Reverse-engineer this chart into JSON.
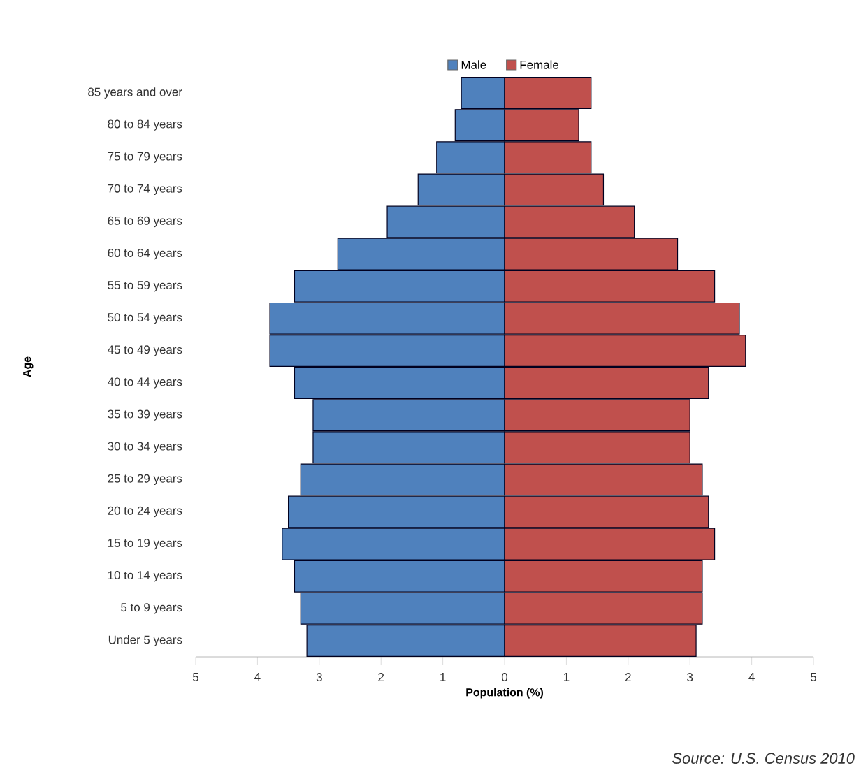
{
  "chart_data": {
    "type": "bar",
    "orientation": "horizontal",
    "stacked": true,
    "xlabel": "Population (%)",
    "ylabel": "Age",
    "categories": [
      "85 years and over",
      "80 to 84 years",
      "75 to 79 years",
      "70 to 74 years",
      "65 to 69 years",
      "60 to 64 years",
      "55 to 59 years",
      "50 to 54 years",
      "45 to 49 years",
      "40 to 44 years",
      "35 to 39 years",
      "30 to 34 years",
      "25 to 29 years",
      "20 to 24 years",
      "15 to 19 years",
      "10 to 14 years",
      "5 to 9 years",
      "Under 5 years"
    ],
    "series": [
      {
        "name": "Male",
        "color": "#4f81bd",
        "values": [
          -0.7,
          -0.8,
          -1.1,
          -1.4,
          -1.9,
          -2.7,
          -3.4,
          -3.8,
          -3.8,
          -3.4,
          -3.1,
          -3.1,
          -3.3,
          -3.5,
          -3.6,
          -3.4,
          -3.3,
          -3.2
        ]
      },
      {
        "name": "Female",
        "color": "#c0504d",
        "values": [
          1.4,
          1.2,
          1.4,
          1.6,
          2.1,
          2.8,
          3.4,
          3.8,
          3.9,
          3.3,
          3.0,
          3.0,
          3.2,
          3.3,
          3.4,
          3.2,
          3.2,
          3.1
        ]
      }
    ],
    "xlim": [
      -5,
      5
    ],
    "xticks": [
      {
        "value": -5,
        "label": "5"
      },
      {
        "value": -4,
        "label": "4"
      },
      {
        "value": -3,
        "label": "3"
      },
      {
        "value": -2,
        "label": "2"
      },
      {
        "value": -1,
        "label": "1"
      },
      0,
      1,
      2,
      3,
      4,
      5
    ],
    "legend": "top",
    "annotations": [
      "Source: U.S. Census 2010"
    ]
  }
}
